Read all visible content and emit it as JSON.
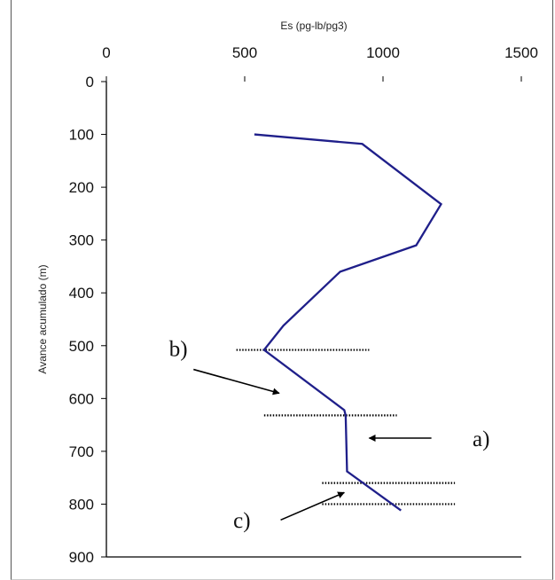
{
  "chart_data": {
    "type": "line",
    "xlabel": "Es (pg-lb/pg3)",
    "ylabel": "Avance acumulado (m)",
    "xlim": [
      0,
      1500
    ],
    "ylim": [
      0,
      900
    ],
    "y_inverted": true,
    "x_axis_position": "top",
    "x_ticks": [
      "0",
      "500",
      "1000",
      "1500"
    ],
    "y_ticks": [
      "0",
      "100",
      "200",
      "300",
      "400",
      "500",
      "600",
      "700",
      "800",
      "900"
    ],
    "grid": false,
    "series": [
      {
        "color": "#1f1f8a",
        "x": [
          535,
          925,
          1210,
          1120,
          845,
          640,
          570,
          860,
          865,
          870,
          1065
        ],
        "y": [
          100,
          118,
          232,
          310,
          360,
          462,
          508,
          622,
          632,
          738,
          812
        ]
      }
    ],
    "dotted_lines": [
      {
        "y": 508,
        "x_from": 470,
        "x_to": 950
      },
      {
        "y": 632,
        "x_from": 570,
        "x_to": 1050
      },
      {
        "y": 760,
        "x_from": 780,
        "x_to": 1260
      },
      {
        "y": 800,
        "x_from": 780,
        "x_to": 1260
      }
    ],
    "annotations": [
      {
        "label": "a)",
        "text_at": [
          1355,
          690
        ],
        "arrow_from": [
          1175,
          675
        ],
        "arrow_to": [
          950,
          675
        ]
      },
      {
        "label": "b)",
        "text_at": [
          260,
          520
        ],
        "arrow_from": [
          315,
          545
        ],
        "arrow_to": [
          625,
          590
        ]
      },
      {
        "label": "c)",
        "text_at": [
          490,
          845
        ],
        "arrow_from": [
          630,
          830
        ],
        "arrow_to": [
          860,
          778
        ]
      }
    ]
  }
}
